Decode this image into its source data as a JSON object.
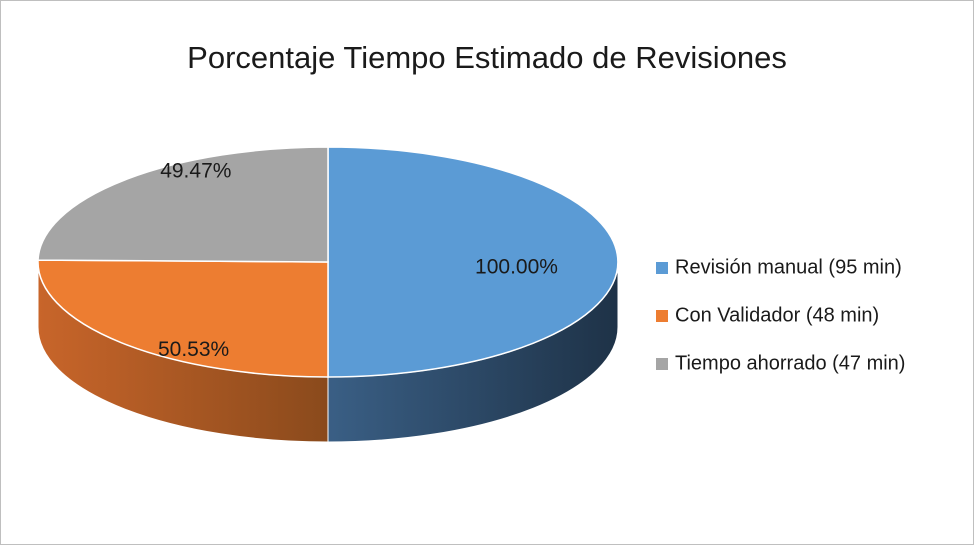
{
  "chart_data": {
    "type": "pie3d",
    "title": "Porcentaje Tiempo Estimado de Revisiones",
    "categories": [
      "Revisión manual (95 min)",
      "Con Validador (48 min)",
      "Tiempo ahorrado (47 min)"
    ],
    "values": [
      100.0,
      50.53,
      49.47
    ],
    "value_labels": [
      "100.00%",
      "50.53%",
      "49.47%"
    ],
    "colors": [
      "#5b9bd5",
      "#ed7d31",
      "#a5a5a5"
    ],
    "legend": "right"
  }
}
